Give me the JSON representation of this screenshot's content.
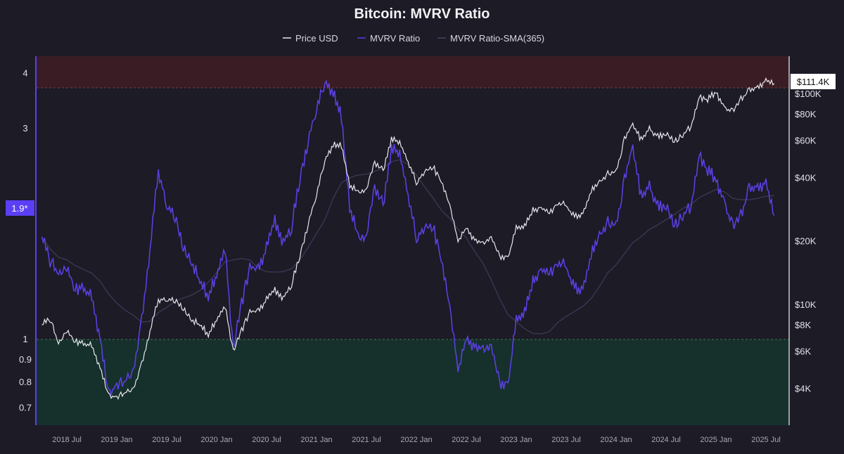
{
  "chart_data": {
    "type": "line",
    "title": "Bitcoin: MVRV Ratio",
    "legend": [
      "Price USD",
      "MVRV Ratio",
      "MVRV Ratio-SMA(365)"
    ],
    "legend_position": "top",
    "colors": {
      "price": "#e8e8ee",
      "mvrv": "#5a3fe0",
      "sma": "#3a3550",
      "background": "#1c1b26",
      "overvalued_zone": "#3a1d24",
      "undervalued_zone": "#16302c",
      "badge": "#5b3ff5"
    },
    "x_ticks": [
      "2018 Jul",
      "2019 Jan",
      "2019 Jul",
      "2020 Jan",
      "2020 Jul",
      "2021 Jan",
      "2021 Jul",
      "2022 Jan",
      "2022 Jul",
      "2023 Jan",
      "2023 Jul",
      "2024 Jan",
      "2024 Jul",
      "2025 Jan",
      "2025 Jul"
    ],
    "left_axis": {
      "scale": "log",
      "ticks": [
        "4",
        "3",
        "1",
        "0.9",
        "0.8",
        "0.7"
      ],
      "current_label": "1.9*"
    },
    "right_axis": {
      "scale": "log",
      "ticks": [
        "$100K",
        "$80K",
        "$60K",
        "$40K",
        "$20K",
        "$10K",
        "$8K",
        "$6K",
        "$4K"
      ],
      "current_label": "$111.4K"
    },
    "zones": {
      "overvalued_above": 3.7,
      "undervalued_below": 1
    },
    "start_month": "2018-04",
    "price_usd": [
      8000,
      8500,
      6500,
      7500,
      6700,
      6500,
      6400,
      5000,
      3700,
      3600,
      3800,
      4000,
      5200,
      7500,
      10500,
      10500,
      10500,
      9500,
      8500,
      8000,
      7200,
      8500,
      9800,
      6000,
      7500,
      9200,
      9400,
      10500,
      11700,
      10700,
      12500,
      17000,
      24000,
      33000,
      48000,
      57000,
      57000,
      37000,
      34000,
      35000,
      47000,
      43000,
      61000,
      58000,
      47000,
      38000,
      43000,
      45000,
      38000,
      30000,
      20000,
      23000,
      20000,
      19500,
      20500,
      17000,
      16500,
      23000,
      23500,
      28000,
      29000,
      27000,
      30500,
      29300,
      26000,
      27000,
      34500,
      37700,
      42000,
      42500,
      61000,
      71000,
      60500,
      67500,
      62700,
      64600,
      59000,
      63500,
      70000,
      96000,
      93500,
      102000,
      84000,
      82500,
      94000,
      104000,
      107000,
      115000,
      111400
    ],
    "mvrv": [
      1.7,
      1.5,
      1.4,
      1.45,
      1.3,
      1.3,
      1.25,
      1.0,
      0.75,
      0.78,
      0.8,
      0.85,
      1.1,
      1.6,
      2.4,
      2.0,
      1.9,
      1.6,
      1.5,
      1.35,
      1.25,
      1.4,
      1.6,
      0.95,
      1.2,
      1.45,
      1.45,
      1.6,
      1.85,
      1.65,
      1.8,
      2.3,
      2.8,
      3.3,
      3.8,
      3.6,
      3.2,
      2.0,
      1.7,
      1.7,
      2.2,
      2.0,
      2.7,
      2.6,
      2.1,
      1.7,
      1.8,
      1.8,
      1.5,
      1.2,
      0.85,
      1.0,
      0.95,
      0.95,
      0.95,
      0.8,
      0.78,
      1.1,
      1.15,
      1.35,
      1.45,
      1.4,
      1.5,
      1.45,
      1.3,
      1.3,
      1.55,
      1.7,
      1.85,
      1.8,
      2.3,
      2.7,
      2.1,
      2.2,
      2.0,
      2.0,
      1.8,
      1.9,
      2.0,
      2.6,
      2.4,
      2.3,
      2.0,
      1.8,
      1.9,
      2.2,
      2.2,
      2.25,
      1.9
    ]
  }
}
